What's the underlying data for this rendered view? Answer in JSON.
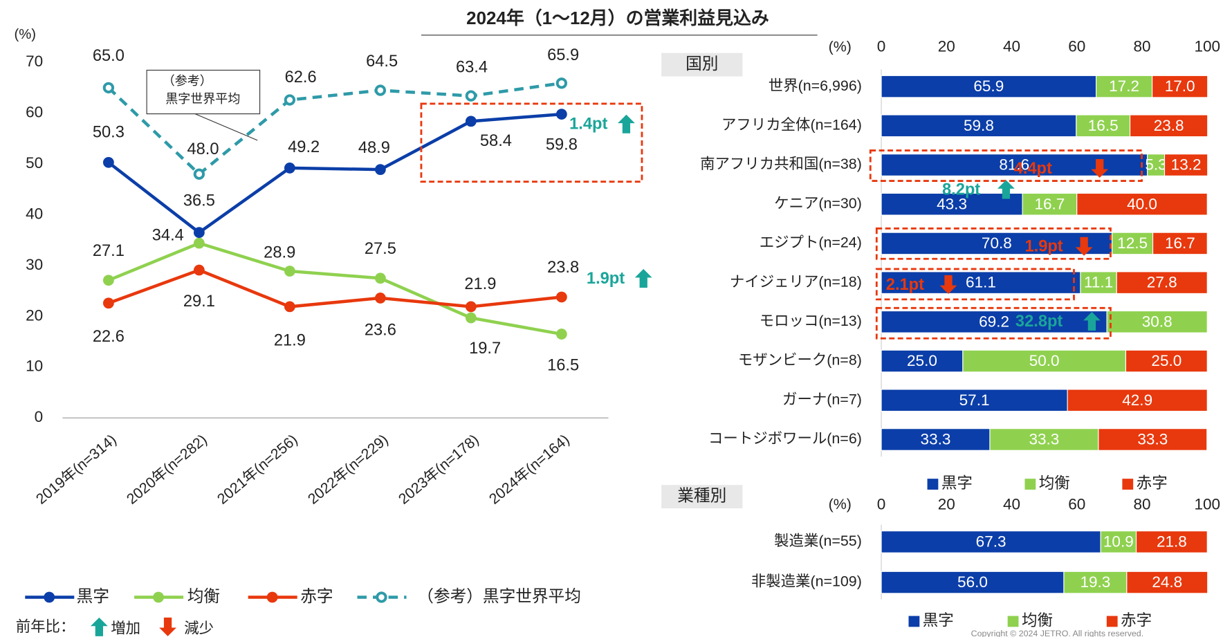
{
  "title": "2024年（1～12月）の営業利益見込み",
  "copyright": "Copyright © 2024 JETRO. All rights reserved.",
  "chart_data": [
    {
      "type": "line",
      "y_label": "(%)",
      "categories": [
        "2019年(n=314)",
        "2020年(n=282)",
        "2021年(n=256)",
        "2022年(n=229)",
        "2023年(n=178)",
        "2024年(n=164)"
      ],
      "ylim": [
        0,
        70
      ],
      "yticks": [
        0,
        10,
        20,
        30,
        40,
        50,
        60,
        70
      ],
      "series": [
        {
          "name": "黒字",
          "color": "#0b3ea8",
          "style": "solid",
          "values": [
            50.3,
            36.5,
            49.2,
            48.9,
            58.4,
            59.8
          ],
          "value_labels": [
            "50.3",
            "36.5",
            "49.2",
            "48.9",
            "58.4",
            "59.8"
          ]
        },
        {
          "name": "均衡",
          "color": "#8fd14f",
          "style": "solid",
          "values": [
            27.1,
            34.4,
            28.9,
            27.5,
            19.7,
            16.5
          ],
          "value_labels": [
            "27.1",
            "34.4",
            "28.9",
            "27.5",
            "19.7",
            "16.5"
          ]
        },
        {
          "name": "赤字",
          "color": "#e8380d",
          "style": "solid",
          "values": [
            22.6,
            29.1,
            21.9,
            23.6,
            21.9,
            23.8
          ],
          "value_labels": [
            "22.6",
            "29.1",
            "21.9",
            "23.6",
            "21.9",
            "23.8"
          ]
        },
        {
          "name": "（参考）黒字世界平均",
          "color": "#2e9aa8",
          "style": "dashed",
          "values": [
            65.0,
            48.0,
            62.6,
            64.5,
            63.4,
            65.9
          ],
          "value_labels": [
            "65.0",
            "48.0",
            "62.6",
            "64.5",
            "63.4",
            "65.9"
          ]
        }
      ],
      "callout": [
        "（参考）",
        "黒字世界平均"
      ],
      "annotations": [
        {
          "text": "1.4pt",
          "trend": "up",
          "color": "#1aa59a"
        },
        {
          "text": "1.9pt",
          "trend": "up",
          "color": "#1aa59a"
        }
      ],
      "trend_legend": {
        "label": "前年比：",
        "up": "増加",
        "down": "減少",
        "up_color": "#1aa59a",
        "down_color": "#e8380d"
      }
    },
    {
      "type": "stacked_barh",
      "section": "国別",
      "x_label": "(%)",
      "xlim": [
        0,
        100
      ],
      "xticks": [
        0,
        20,
        40,
        60,
        80,
        100
      ],
      "categories": [
        "世界(n=6,996)",
        "アフリカ全体(n=164)",
        "南アフリカ共和国(n=38)",
        "ケニア(n=30)",
        "エジプト(n=24)",
        "ナイジェリア(n=18)",
        "モロッコ(n=13)",
        "モザンビーク(n=8)",
        "ガーナ(n=7)",
        "コートジボワール(n=6)"
      ],
      "series": [
        {
          "name": "黒字",
          "color": "#0b3ea8",
          "values": [
            65.9,
            59.8,
            81.6,
            43.3,
            70.8,
            61.1,
            69.2,
            25.0,
            57.1,
            33.3
          ],
          "value_labels": [
            "65.9",
            "59.8",
            "81.6",
            "43.3",
            "70.8",
            "61.1",
            "69.2",
            "25.0",
            "57.1",
            "33.3"
          ]
        },
        {
          "name": "均衡",
          "color": "#8fd14f",
          "values": [
            17.2,
            16.5,
            5.3,
            16.7,
            12.5,
            11.1,
            30.8,
            50.0,
            null,
            33.3
          ],
          "value_labels": [
            "17.2",
            "16.5",
            "5.3",
            "16.7",
            "12.5",
            "11.1",
            "30.8",
            "50.0",
            null,
            "33.3"
          ]
        },
        {
          "name": "赤字",
          "color": "#e8380d",
          "values": [
            17.0,
            23.8,
            13.2,
            40.0,
            16.7,
            27.8,
            null,
            25.0,
            42.9,
            33.3
          ],
          "value_labels": [
            "17.0",
            "23.8",
            "13.2",
            "40.0",
            "16.7",
            "27.8",
            null,
            "25.0",
            "42.9",
            "33.3"
          ]
        }
      ],
      "annotations": [
        {
          "text": "4.4pt",
          "trend": "down",
          "color": "#e8380d"
        },
        {
          "text": "8.2pt",
          "trend": "up",
          "color": "#1aa59a"
        },
        {
          "text": "1.9pt",
          "trend": "down",
          "color": "#e8380d"
        },
        {
          "text": "2.1pt",
          "trend": "down",
          "color": "#e8380d"
        },
        {
          "text": "32.8pt",
          "trend": "up",
          "color": "#1aa59a"
        }
      ]
    },
    {
      "type": "stacked_barh",
      "section": "業種別",
      "x_label": "(%)",
      "xlim": [
        0,
        100
      ],
      "xticks": [
        0,
        20,
        40,
        60,
        80,
        100
      ],
      "categories": [
        "製造業(n=55)",
        "非製造業(n=109)"
      ],
      "series": [
        {
          "name": "黒字",
          "color": "#0b3ea8",
          "values": [
            67.3,
            56.0
          ],
          "value_labels": [
            "67.3",
            "56.0"
          ]
        },
        {
          "name": "均衡",
          "color": "#8fd14f",
          "values": [
            10.9,
            19.3
          ],
          "value_labels": [
            "10.9",
            "19.3"
          ]
        },
        {
          "name": "赤字",
          "color": "#e8380d",
          "values": [
            21.8,
            24.8
          ],
          "value_labels": [
            "21.8",
            "24.8"
          ]
        }
      ],
      "annotations": []
    }
  ]
}
